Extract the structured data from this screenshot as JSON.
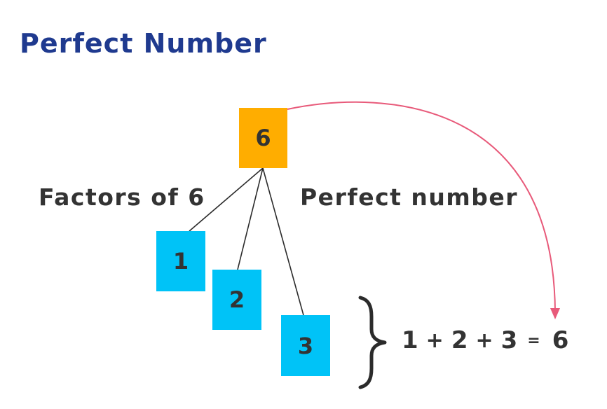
{
  "title": "Perfect Number",
  "labels": {
    "factors": "Factors of 6",
    "perfect": "Perfect number"
  },
  "number": "6",
  "factors": [
    "1",
    "2",
    "3"
  ],
  "equation": {
    "terms": [
      "1",
      "2",
      "3"
    ],
    "operator": "+",
    "equals": "=",
    "result": "6"
  },
  "colors": {
    "title": "#1f3a8f",
    "number_box": "#ffad00",
    "factor_box": "#00c3f7",
    "arrow": "#e85a7a",
    "text": "#333333"
  }
}
